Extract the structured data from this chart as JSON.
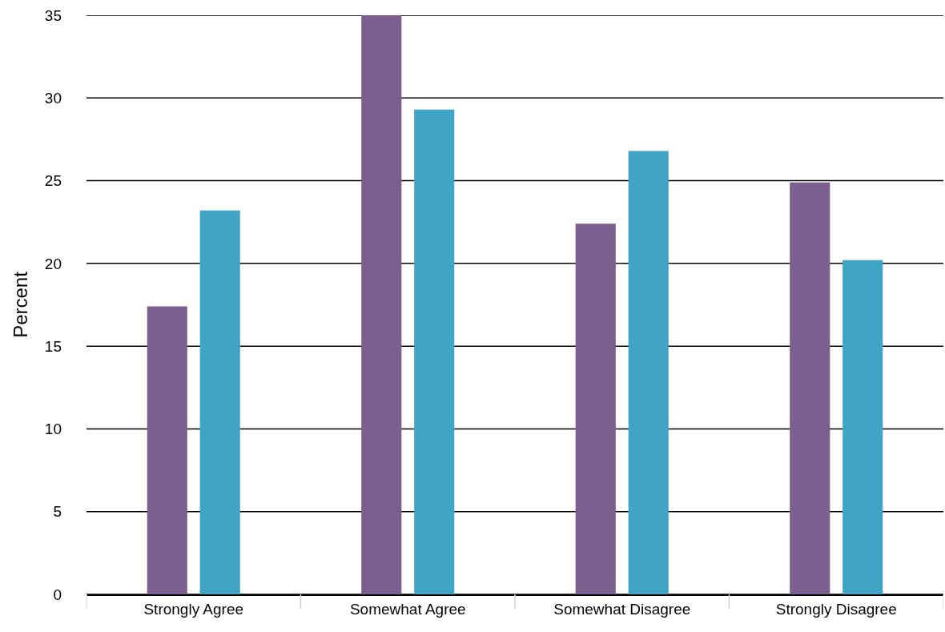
{
  "chart_data": {
    "type": "bar",
    "ylabel": "Percent",
    "categories": [
      "Strongly Agree",
      "Somewhat Agree",
      "Somewhat Disagree",
      "Strongly Disagree"
    ],
    "series": [
      {
        "color": "#7b5f8e",
        "values": [
          17.4,
          35,
          22.4,
          24.9
        ]
      },
      {
        "color": "#40a4c4",
        "values": [
          23.2,
          29.3,
          26.8,
          20.2
        ]
      }
    ],
    "ylim": [
      0,
      35
    ],
    "yticks": [
      0,
      5,
      10,
      15,
      20,
      25,
      30,
      35
    ],
    "grid": "y"
  }
}
